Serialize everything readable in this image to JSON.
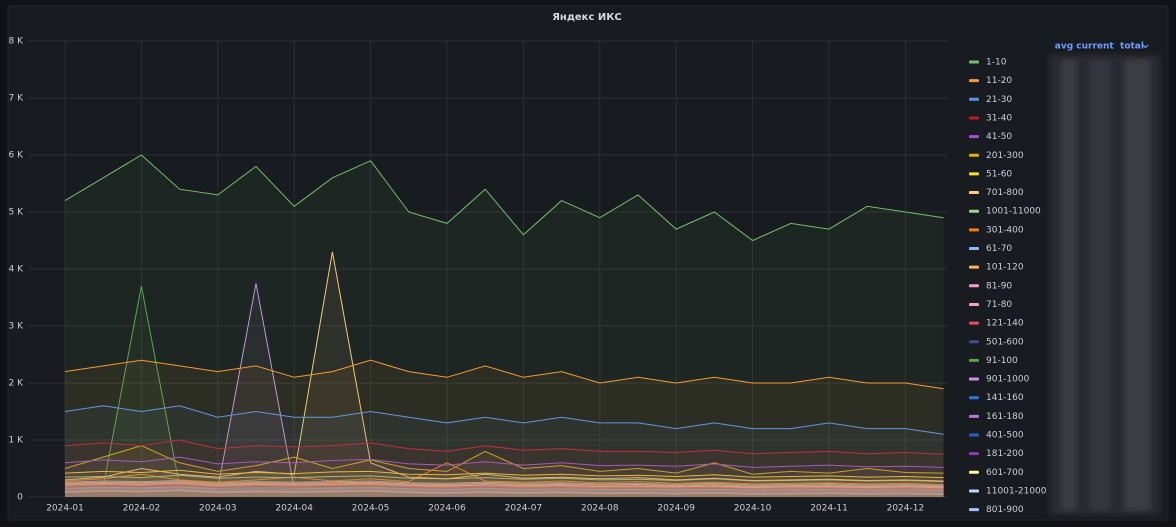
{
  "chart_data": {
    "type": "line",
    "title": "Яндекс ИКС",
    "categories": [
      "2024-01",
      null,
      "2024-02",
      null,
      "2024-03",
      null,
      "2024-04",
      null,
      "2024-05",
      null,
      "2024-06",
      null,
      "2024-07",
      null,
      "2024-08",
      null,
      "2024-09",
      null,
      "2024-10",
      null,
      "2024-11",
      null,
      "2024-12",
      null
    ],
    "ylim": [
      0,
      8000
    ],
    "yticks": [
      0,
      {
        "value": 1000,
        "label": "1 K"
      },
      {
        "value": 2000,
        "label": "2 K"
      },
      {
        "value": 3000,
        "label": "3 K"
      },
      {
        "value": 4000,
        "label": "4 K"
      },
      {
        "value": 5000,
        "label": "5 K"
      },
      {
        "value": 6000,
        "label": "6 K"
      },
      {
        "value": 7000,
        "label": "7 K"
      },
      {
        "value": 8000,
        "label": "8 K"
      }
    ],
    "grid": true,
    "legend": "right",
    "legend_columns": [
      "avg",
      "current",
      "total"
    ],
    "series": [
      {
        "name": "1-10",
        "color": "#73bf69",
        "values": [
          5200,
          5600,
          6000,
          5400,
          5300,
          5800,
          5100,
          5600,
          5900,
          5000,
          4800,
          5400,
          4600,
          5200,
          4900,
          5300,
          4700,
          5000,
          4500,
          4800,
          4700,
          5100,
          5000,
          4900
        ]
      },
      {
        "name": "11-20",
        "color": "#ff9830",
        "values": [
          2200,
          2300,
          2400,
          2300,
          2200,
          2300,
          2100,
          2200,
          2400,
          2200,
          2100,
          2300,
          2100,
          2200,
          2000,
          2100,
          2000,
          2100,
          2000,
          2000,
          2100,
          2000,
          2000,
          1900
        ]
      },
      {
        "name": "21-30",
        "color": "#5794f2",
        "values": [
          1500,
          1600,
          1500,
          1600,
          1400,
          1500,
          1400,
          1400,
          1500,
          1400,
          1300,
          1400,
          1300,
          1400,
          1300,
          1300,
          1200,
          1300,
          1200,
          1200,
          1300,
          1200,
          1200,
          1100
        ]
      },
      {
        "name": "31-40",
        "color": "#c4162a",
        "values": [
          900,
          950,
          900,
          1000,
          850,
          900,
          880,
          900,
          950,
          850,
          800,
          900,
          820,
          850,
          800,
          800,
          780,
          820,
          760,
          780,
          800,
          760,
          780,
          750
        ]
      },
      {
        "name": "41-50",
        "color": "#a352cc",
        "values": [
          600,
          650,
          620,
          700,
          580,
          620,
          600,
          640,
          660,
          580,
          560,
          620,
          560,
          600,
          550,
          560,
          540,
          580,
          520,
          540,
          560,
          530,
          540,
          520
        ]
      },
      {
        "name": "201-300",
        "color": "#e0b400",
        "values": [
          500,
          700,
          900,
          600,
          450,
          550,
          700,
          500,
          650,
          500,
          450,
          800,
          500,
          550,
          450,
          500,
          420,
          600,
          400,
          450,
          420,
          500,
          430,
          420
        ]
      },
      {
        "name": "51-60",
        "color": "#fade2a",
        "values": [
          420,
          450,
          430,
          470,
          400,
          430,
          410,
          440,
          450,
          400,
          390,
          420,
          380,
          400,
          370,
          380,
          360,
          390,
          350,
          360,
          370,
          350,
          360,
          340
        ]
      },
      {
        "name": "701-800",
        "color": "#ffcb7d",
        "values": [
          300,
          350,
          500,
          400,
          350,
          450,
          400,
          4300,
          600,
          350,
          320,
          400,
          330,
          350,
          320,
          340,
          300,
          330,
          290,
          300,
          310,
          290,
          300,
          280
        ]
      },
      {
        "name": "1001-11000",
        "color": "#96d98d",
        "values": [
          350,
          360,
          340,
          380,
          330,
          350,
          340,
          360,
          370,
          330,
          320,
          340,
          310,
          330,
          300,
          310,
          290,
          320,
          280,
          290,
          300,
          280,
          290,
          270
        ]
      },
      {
        "name": "301-400",
        "color": "#ff780a",
        "values": [
          280,
          320,
          400,
          300,
          260,
          300,
          350,
          280,
          320,
          270,
          600,
          280,
          260,
          280,
          250,
          270,
          240,
          260,
          230,
          240,
          250,
          230,
          240,
          220
        ]
      },
      {
        "name": "61-70",
        "color": "#8ab8ff",
        "values": [
          260,
          280,
          270,
          290,
          250,
          270,
          260,
          270,
          280,
          250,
          240,
          260,
          240,
          250,
          230,
          240,
          220,
          240,
          210,
          220,
          230,
          210,
          220,
          200
        ]
      },
      {
        "name": "101-120",
        "color": "#ffb357",
        "values": [
          240,
          260,
          250,
          270,
          230,
          250,
          240,
          250,
          260,
          230,
          220,
          240,
          220,
          230,
          210,
          220,
          200,
          220,
          190,
          200,
          210,
          190,
          200,
          190
        ]
      },
      {
        "name": "81-90",
        "color": "#ff99d6",
        "values": [
          220,
          240,
          230,
          250,
          210,
          230,
          220,
          230,
          240,
          210,
          200,
          220,
          200,
          210,
          190,
          200,
          185,
          200,
          175,
          185,
          190,
          175,
          185,
          170
        ]
      },
      {
        "name": "71-80",
        "color": "#ffa6b0",
        "values": [
          210,
          230,
          220,
          240,
          200,
          220,
          210,
          220,
          230,
          200,
          190,
          210,
          190,
          200,
          180,
          190,
          175,
          190,
          165,
          175,
          180,
          165,
          175,
          160
        ]
      },
      {
        "name": "121-140",
        "color": "#f2495c",
        "values": [
          190,
          210,
          200,
          220,
          180,
          200,
          190,
          200,
          210,
          180,
          170,
          190,
          170,
          180,
          160,
          170,
          155,
          170,
          150,
          155,
          160,
          150,
          155,
          145
        ]
      },
      {
        "name": "501-600",
        "color": "#4a4a8c",
        "values": [
          170,
          190,
          180,
          200,
          165,
          180,
          170,
          180,
          190,
          165,
          155,
          170,
          155,
          165,
          150,
          155,
          145,
          155,
          140,
          145,
          150,
          140,
          145,
          135
        ]
      },
      {
        "name": "91-100",
        "color": "#56a64b",
        "values": [
          160,
          180,
          3700,
          190,
          155,
          170,
          160,
          170,
          180,
          155,
          145,
          160,
          145,
          155,
          140,
          145,
          135,
          145,
          130,
          135,
          140,
          130,
          135,
          125
        ]
      },
      {
        "name": "901-1000",
        "color": "#ca95e5",
        "values": [
          150,
          170,
          160,
          180,
          145,
          3750,
          150,
          160,
          170,
          145,
          135,
          150,
          135,
          145,
          130,
          135,
          125,
          135,
          120,
          125,
          130,
          120,
          125,
          115
        ]
      },
      {
        "name": "141-160",
        "color": "#3274d9",
        "values": [
          140,
          160,
          150,
          170,
          135,
          150,
          140,
          150,
          160,
          135,
          125,
          140,
          125,
          135,
          120,
          125,
          115,
          125,
          110,
          115,
          120,
          110,
          115,
          105
        ]
      },
      {
        "name": "161-180",
        "color": "#b877d9",
        "values": [
          130,
          150,
          140,
          160,
          125,
          140,
          130,
          140,
          150,
          125,
          115,
          130,
          115,
          125,
          110,
          115,
          105,
          115,
          100,
          105,
          110,
          100,
          105,
          95
        ]
      },
      {
        "name": "401-500",
        "color": "#1f60c4",
        "values": [
          120,
          140,
          130,
          150,
          115,
          130,
          120,
          130,
          140,
          115,
          105,
          120,
          105,
          115,
          100,
          105,
          95,
          105,
          90,
          95,
          100,
          90,
          95,
          85
        ]
      },
      {
        "name": "181-200",
        "color": "#8f3bb8",
        "values": [
          110,
          130,
          120,
          140,
          105,
          120,
          110,
          120,
          130,
          105,
          95,
          110,
          95,
          105,
          90,
          95,
          85,
          95,
          80,
          85,
          90,
          80,
          85,
          75
        ]
      },
      {
        "name": "601-700",
        "color": "#fff899",
        "values": [
          100,
          120,
          110,
          130,
          95,
          110,
          100,
          110,
          120,
          95,
          85,
          100,
          85,
          95,
          80,
          85,
          75,
          85,
          70,
          75,
          80,
          70,
          75,
          65
        ]
      },
      {
        "name": "11001-21000",
        "color": "#c0d8ff",
        "values": [
          90,
          110,
          100,
          120,
          85,
          100,
          90,
          100,
          110,
          85,
          75,
          90,
          75,
          85,
          70,
          75,
          65,
          75,
          60,
          65,
          70,
          60,
          65,
          55
        ]
      },
      {
        "name": "801-900",
        "color": "#a0c8ff",
        "values": [
          80,
          100,
          90,
          110,
          75,
          90,
          80,
          90,
          100,
          75,
          65,
          80,
          65,
          75,
          60,
          65,
          55,
          65,
          50,
          55,
          60,
          50,
          55,
          45
        ]
      }
    ]
  }
}
